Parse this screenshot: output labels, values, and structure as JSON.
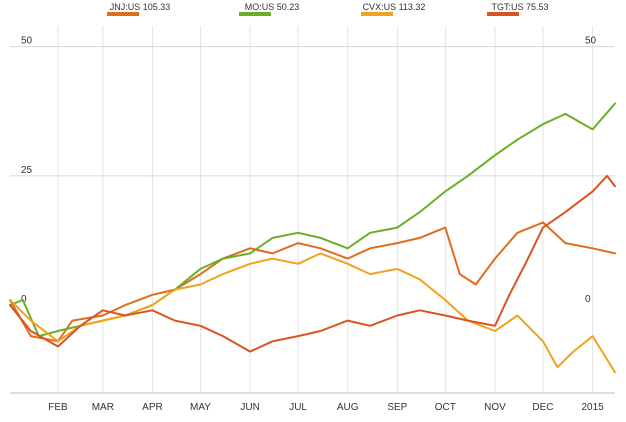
{
  "chart_data": {
    "type": "line",
    "title": "",
    "xlabel": "",
    "ylabel": "",
    "ylim": [
      -17,
      54
    ],
    "y_ticks": [
      {
        "value": 50,
        "label_left": "50",
        "label_right": "50"
      },
      {
        "value": 25,
        "label_left": "25",
        "label_right": ""
      },
      {
        "value": 0,
        "label_left": "0",
        "label_right": "0"
      }
    ],
    "x_domain": [
      "2014-01-02",
      "2015-01-15"
    ],
    "x_ticks": [
      {
        "date": "2014-02-01",
        "label": "FEB"
      },
      {
        "date": "2014-03-01",
        "label": "MAR"
      },
      {
        "date": "2014-04-01",
        "label": "APR"
      },
      {
        "date": "2014-05-01",
        "label": "MAY"
      },
      {
        "date": "2014-06-01",
        "label": "JUN"
      },
      {
        "date": "2014-07-01",
        "label": "JUL"
      },
      {
        "date": "2014-08-01",
        "label": "AUG"
      },
      {
        "date": "2014-09-01",
        "label": "SEP"
      },
      {
        "date": "2014-10-01",
        "label": "OCT"
      },
      {
        "date": "2014-11-01",
        "label": "NOV"
      },
      {
        "date": "2014-12-01",
        "label": "DEC"
      },
      {
        "date": "2015-01-01",
        "label": "2015"
      }
    ],
    "grid": true,
    "legend_position": "top",
    "series": [
      {
        "name": "JNJ:US 105.33",
        "color": "#e06c1e",
        "points": [
          [
            "2014-01-02",
            1
          ],
          [
            "2014-01-15",
            -6
          ],
          [
            "2014-02-01",
            -7
          ],
          [
            "2014-02-10",
            -3
          ],
          [
            "2014-03-01",
            -2
          ],
          [
            "2014-03-15",
            0
          ],
          [
            "2014-04-01",
            2
          ],
          [
            "2014-04-15",
            3
          ],
          [
            "2014-05-01",
            6
          ],
          [
            "2014-05-15",
            9
          ],
          [
            "2014-06-01",
            11
          ],
          [
            "2014-06-15",
            10
          ],
          [
            "2014-07-01",
            12
          ],
          [
            "2014-07-15",
            11
          ],
          [
            "2014-08-01",
            9
          ],
          [
            "2014-08-15",
            11
          ],
          [
            "2014-09-01",
            12
          ],
          [
            "2014-09-15",
            13
          ],
          [
            "2014-10-01",
            15
          ],
          [
            "2014-10-10",
            6
          ],
          [
            "2014-10-20",
            4
          ],
          [
            "2014-11-01",
            9
          ],
          [
            "2014-11-15",
            14
          ],
          [
            "2014-12-01",
            16
          ],
          [
            "2014-12-15",
            12
          ],
          [
            "2015-01-01",
            11
          ],
          [
            "2015-01-15",
            10
          ]
        ]
      },
      {
        "name": "MO:US 50.23",
        "color": "#6aaf23",
        "points": [
          [
            "2014-01-02",
            0
          ],
          [
            "2014-01-10",
            1
          ],
          [
            "2014-01-20",
            -6
          ],
          [
            "2014-02-01",
            -5
          ],
          [
            "2014-02-15",
            -4
          ],
          [
            "2014-03-01",
            -3
          ],
          [
            "2014-03-15",
            -2
          ],
          [
            "2014-04-01",
            0
          ],
          [
            "2014-04-15",
            3
          ],
          [
            "2014-05-01",
            7
          ],
          [
            "2014-05-15",
            9
          ],
          [
            "2014-06-01",
            10
          ],
          [
            "2014-06-15",
            13
          ],
          [
            "2014-07-01",
            14
          ],
          [
            "2014-07-15",
            13
          ],
          [
            "2014-08-01",
            11
          ],
          [
            "2014-08-15",
            14
          ],
          [
            "2014-09-01",
            15
          ],
          [
            "2014-09-15",
            18
          ],
          [
            "2014-10-01",
            22
          ],
          [
            "2014-10-15",
            25
          ],
          [
            "2014-11-01",
            29
          ],
          [
            "2014-11-15",
            32
          ],
          [
            "2014-12-01",
            35
          ],
          [
            "2014-12-15",
            37
          ],
          [
            "2015-01-01",
            34
          ],
          [
            "2015-01-15",
            39
          ]
        ]
      },
      {
        "name": "CVX:US 113.32",
        "color": "#f2a21c",
        "points": [
          [
            "2014-01-02",
            1
          ],
          [
            "2014-01-15",
            -3
          ],
          [
            "2014-02-01",
            -7
          ],
          [
            "2014-02-15",
            -4
          ],
          [
            "2014-03-01",
            -3
          ],
          [
            "2014-03-15",
            -2
          ],
          [
            "2014-04-01",
            0
          ],
          [
            "2014-04-15",
            3
          ],
          [
            "2014-05-01",
            4
          ],
          [
            "2014-05-15",
            6
          ],
          [
            "2014-06-01",
            8
          ],
          [
            "2014-06-15",
            9
          ],
          [
            "2014-07-01",
            8
          ],
          [
            "2014-07-15",
            10
          ],
          [
            "2014-08-01",
            8
          ],
          [
            "2014-08-15",
            6
          ],
          [
            "2014-09-01",
            7
          ],
          [
            "2014-09-15",
            5
          ],
          [
            "2014-10-01",
            1
          ],
          [
            "2014-10-15",
            -3
          ],
          [
            "2014-11-01",
            -5
          ],
          [
            "2014-11-15",
            -2
          ],
          [
            "2014-12-01",
            -7
          ],
          [
            "2014-12-10",
            -12
          ],
          [
            "2014-12-20",
            -9
          ],
          [
            "2015-01-01",
            -6
          ],
          [
            "2015-01-15",
            -13
          ]
        ]
      },
      {
        "name": "TGT:US 75.53",
        "color": "#d9541e",
        "points": [
          [
            "2014-01-02",
            0
          ],
          [
            "2014-01-15",
            -5
          ],
          [
            "2014-02-01",
            -8
          ],
          [
            "2014-02-15",
            -4
          ],
          [
            "2014-03-01",
            -1
          ],
          [
            "2014-03-15",
            -2
          ],
          [
            "2014-04-01",
            -1
          ],
          [
            "2014-04-15",
            -3
          ],
          [
            "2014-05-01",
            -4
          ],
          [
            "2014-05-15",
            -6
          ],
          [
            "2014-06-01",
            -9
          ],
          [
            "2014-06-15",
            -7
          ],
          [
            "2014-07-01",
            -6
          ],
          [
            "2014-07-15",
            -5
          ],
          [
            "2014-08-01",
            -3
          ],
          [
            "2014-08-15",
            -4
          ],
          [
            "2014-09-01",
            -2
          ],
          [
            "2014-09-15",
            -1
          ],
          [
            "2014-10-01",
            -2
          ],
          [
            "2014-10-15",
            -3
          ],
          [
            "2014-11-01",
            -4
          ],
          [
            "2014-11-10",
            2
          ],
          [
            "2014-11-20",
            8
          ],
          [
            "2014-12-01",
            15
          ],
          [
            "2014-12-15",
            18
          ],
          [
            "2015-01-01",
            22
          ],
          [
            "2015-01-10",
            25
          ],
          [
            "2015-01-15",
            23
          ]
        ]
      }
    ]
  }
}
